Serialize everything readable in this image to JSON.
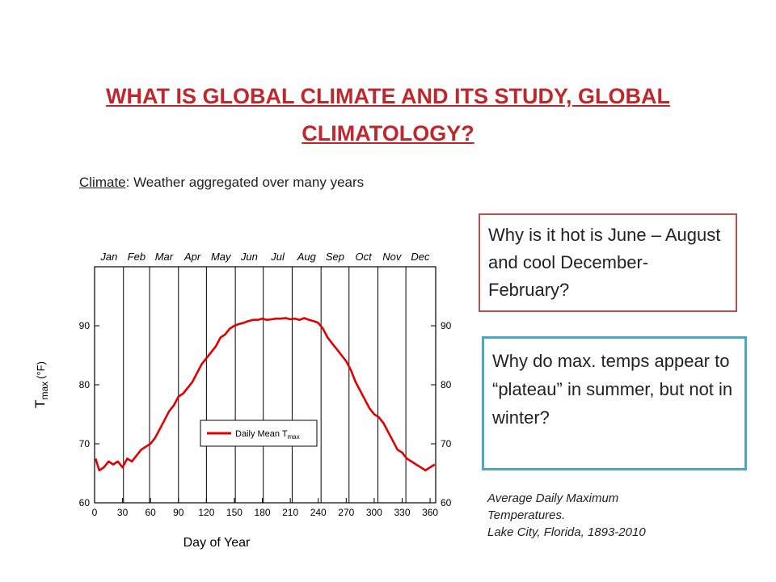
{
  "title": "WHAT IS GLOBAL CLIMATE AND ITS STUDY, GLOBAL CLIMATOLOGY?",
  "climate_term": "Climate",
  "climate_definition": ": Weather aggregated over many years",
  "question_1": "Why is it hot is June – August and cool December- February?",
  "question_2": "Why do max. temps appear to “plateau” in summer, but not in winter?",
  "caption_line1": "Average Daily Maximum Temperatures.",
  "caption_line2": "Lake City, Florida, 1893-2010",
  "colors": {
    "title": "#c0272d",
    "series": "#e00000",
    "box1_border": "#b55050",
    "box2_border": "#4aa8c0"
  },
  "chart_data": {
    "type": "line",
    "title": "",
    "xlabel": "Day of Year",
    "ylabel_main": "T",
    "ylabel_sub": "max",
    "ylabel_unit": "(°F)",
    "xlim": [
      0,
      366
    ],
    "ylim": [
      60,
      100
    ],
    "xticks": [
      0,
      30,
      60,
      90,
      120,
      150,
      180,
      210,
      240,
      270,
      300,
      330,
      360
    ],
    "yticks": [
      60,
      70,
      80,
      90
    ],
    "months": [
      "Jan",
      "Feb",
      "Mar",
      "Apr",
      "May",
      "Jun",
      "Jul",
      "Aug",
      "Sep",
      "Oct",
      "Nov",
      "Dec"
    ],
    "month_boundaries": [
      31,
      59,
      90,
      120,
      151,
      181,
      212,
      243,
      273,
      304,
      334
    ],
    "grid_x": "month boundaries",
    "legend": {
      "position": "center",
      "label_main": "Daily Mean T",
      "label_sub": "max"
    },
    "series": [
      {
        "name": "Daily Mean Tmax",
        "x": [
          1,
          5,
          10,
          15,
          20,
          25,
          30,
          35,
          40,
          45,
          50,
          55,
          60,
          65,
          70,
          75,
          80,
          85,
          90,
          95,
          100,
          105,
          110,
          115,
          120,
          125,
          130,
          135,
          140,
          145,
          150,
          155,
          160,
          165,
          170,
          175,
          180,
          185,
          190,
          195,
          200,
          205,
          210,
          215,
          220,
          225,
          230,
          235,
          240,
          245,
          250,
          255,
          260,
          265,
          270,
          275,
          280,
          285,
          290,
          295,
          300,
          305,
          310,
          315,
          320,
          325,
          330,
          335,
          340,
          345,
          350,
          355,
          360,
          365
        ],
        "y": [
          67.5,
          65.5,
          66,
          67,
          66.5,
          67,
          66,
          67.5,
          67,
          68,
          69,
          69.5,
          70,
          71,
          72.5,
          74,
          75.5,
          76.5,
          78,
          78.5,
          79.5,
          80.5,
          82,
          83.5,
          84.5,
          85.5,
          86.5,
          88,
          88.5,
          89.5,
          90,
          90.3,
          90.5,
          90.8,
          91,
          91,
          91.2,
          91,
          91.1,
          91.2,
          91.2,
          91.3,
          91.1,
          91.2,
          91,
          91.3,
          91,
          90.8,
          90.5,
          89.5,
          88,
          87,
          86,
          85,
          84,
          82.5,
          80.5,
          79,
          77.5,
          76,
          75,
          74.5,
          73.5,
          72,
          70.5,
          69,
          68.5,
          67.5,
          67,
          66.5,
          66,
          65.5,
          66,
          66.5
        ]
      }
    ]
  }
}
